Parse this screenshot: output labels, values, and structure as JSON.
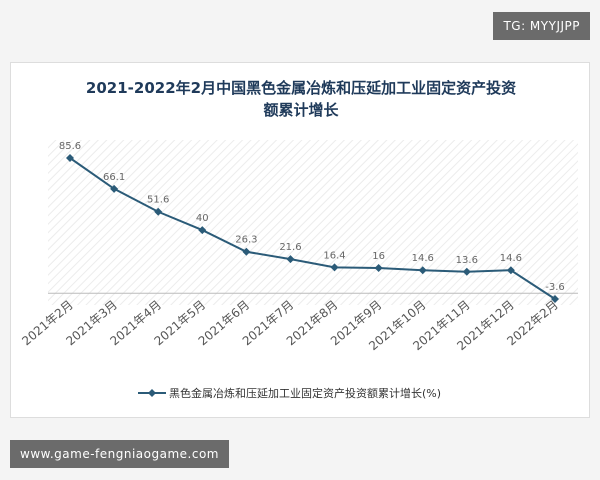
{
  "watermark_top": "TG: MYYJJPP",
  "watermark_bottom": "www.game-fengniaogame.com",
  "chart_data": {
    "type": "line",
    "title": "2021-2022年2月中国黑色金属冶炼和压延加工业固定资产投资额累计增长",
    "categories": [
      "2021年2月",
      "2021年3月",
      "2021年4月",
      "2021年5月",
      "2021年6月",
      "2021年7月",
      "2021年8月",
      "2021年9月",
      "2021年10月",
      "2021年11月",
      "2021年12月",
      "2022年2月"
    ],
    "series": [
      {
        "name": "黑色金属冶炼和压延加工业固定资产投资额累计增长(%)",
        "color": "#2b5b78",
        "values": [
          85.6,
          66.1,
          51.6,
          40,
          26.3,
          21.6,
          16.4,
          16,
          14.6,
          13.6,
          14.6,
          -3.6
        ]
      }
    ]
  }
}
